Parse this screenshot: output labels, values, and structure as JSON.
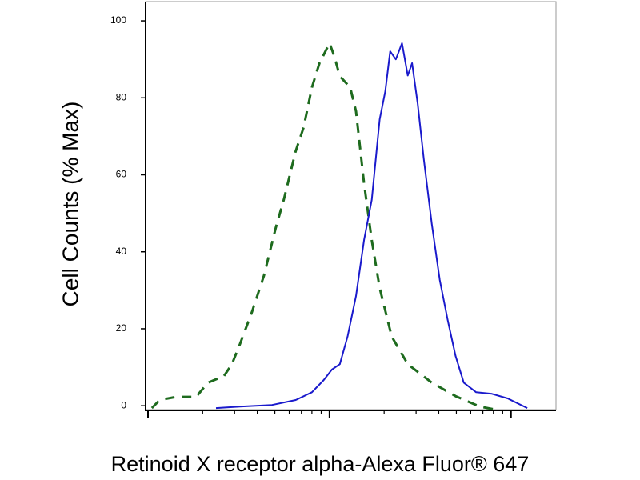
{
  "chart_data": {
    "type": "line",
    "ylabel": "Cell Counts (% Max)",
    "xlabel": "Retinoid X receptor alpha-Alexa Fluor® 647",
    "xlog": true,
    "xlim": [
      0.97,
      177
    ],
    "xticks": [
      1,
      2,
      3,
      4,
      5,
      6,
      7,
      8,
      9,
      10,
      20,
      30,
      40,
      50,
      60,
      70,
      80,
      90,
      100
    ],
    "ylim": [
      -1,
      105
    ],
    "yticks": [
      0,
      20,
      40,
      60,
      80,
      100
    ],
    "series": [
      {
        "color": "#1e6b1e",
        "dash": true,
        "x": [
          1.05,
          1.16,
          1.43,
          1.84,
          2.14,
          2.62,
          2.9,
          3.21,
          3.74,
          4.35,
          5.06,
          5.6,
          6.5,
          7.2,
          8.0,
          8.8,
          10,
          10.6,
          11.4,
          13.0,
          14.0,
          15.5,
          17.1,
          18.9,
          22.0,
          27.0,
          36.6,
          49.5,
          67.3,
          82
        ],
        "values": [
          -0.6,
          1.5,
          2.3,
          2.3,
          6,
          7.7,
          10.8,
          16,
          24.4,
          33.8,
          46.3,
          53.5,
          66,
          72.3,
          82.7,
          89,
          94.2,
          91,
          85.6,
          82.7,
          76.5,
          57.7,
          43,
          30.6,
          18,
          10.8,
          6,
          2.5,
          -0.2,
          -1
        ]
      },
      {
        "color": "#1a1acc",
        "dash": false,
        "x": [
          2.37,
          3.21,
          4.82,
          6.52,
          8.0,
          9.3,
          10.3,
          11.4,
          12.6,
          14.0,
          15.5,
          17.1,
          18.9,
          20.3,
          21.6,
          23.2,
          25.1,
          27.0,
          28.5,
          30.6,
          33.1,
          36.6,
          40.5,
          44.8,
          49.5,
          54.9,
          64.3,
          78.5,
          95.9,
          123
        ],
        "values": [
          -0.6,
          -0.2,
          0.2,
          1.5,
          3.5,
          6.7,
          9.4,
          10.8,
          18.1,
          28.5,
          43.1,
          53.5,
          74.4,
          81.7,
          92.1,
          90,
          94.2,
          85.8,
          89,
          78.5,
          64,
          47.3,
          32.7,
          22.3,
          12.9,
          6,
          3.5,
          3.1,
          1.9,
          -0.6
        ]
      }
    ]
  }
}
